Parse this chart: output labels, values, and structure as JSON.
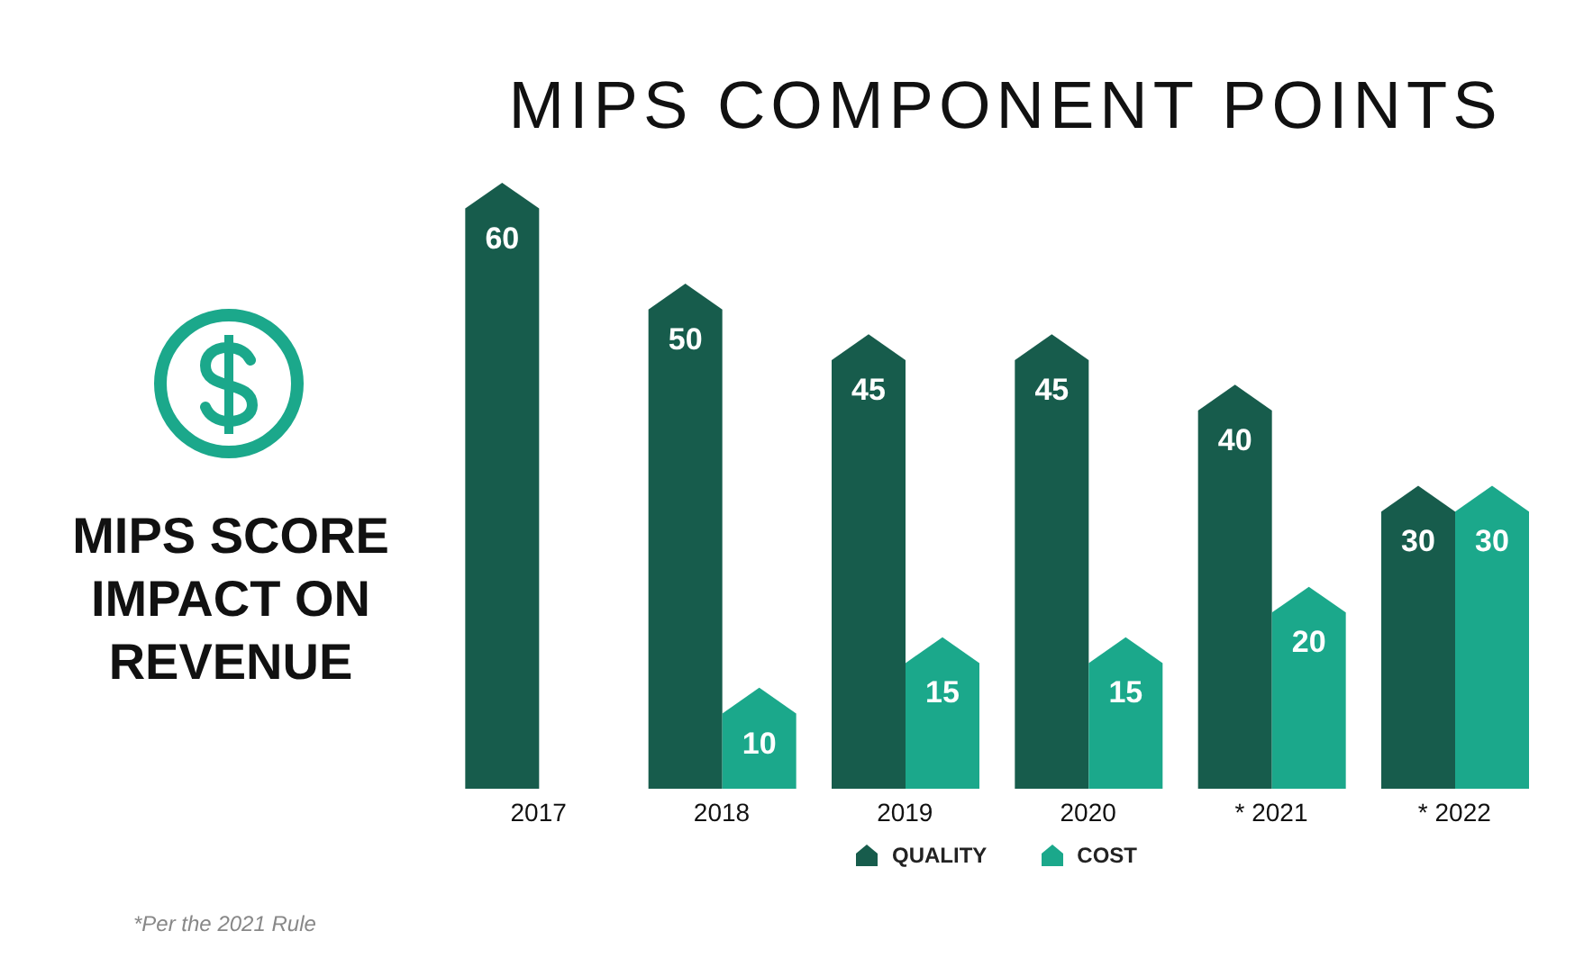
{
  "chart_data": {
    "type": "bar",
    "title": "MIPS COMPONENT POINTS",
    "categories": [
      "2017",
      "2018",
      "2019",
      "2020",
      "* 2021",
      "* 2022"
    ],
    "series": [
      {
        "name": "QUALITY",
        "color": "#175c4c",
        "values": [
          60,
          50,
          45,
          45,
          40,
          30
        ]
      },
      {
        "name": "COST",
        "color": "#1ba88b",
        "values": [
          null,
          10,
          15,
          15,
          20,
          30
        ]
      }
    ],
    "data_labels": true,
    "legend": "bottom",
    "tick_labels": "x",
    "annotations": [
      "MIPS SCORE IMPACT ON REVENUE",
      "*Per the 2021 Rule"
    ]
  }
}
